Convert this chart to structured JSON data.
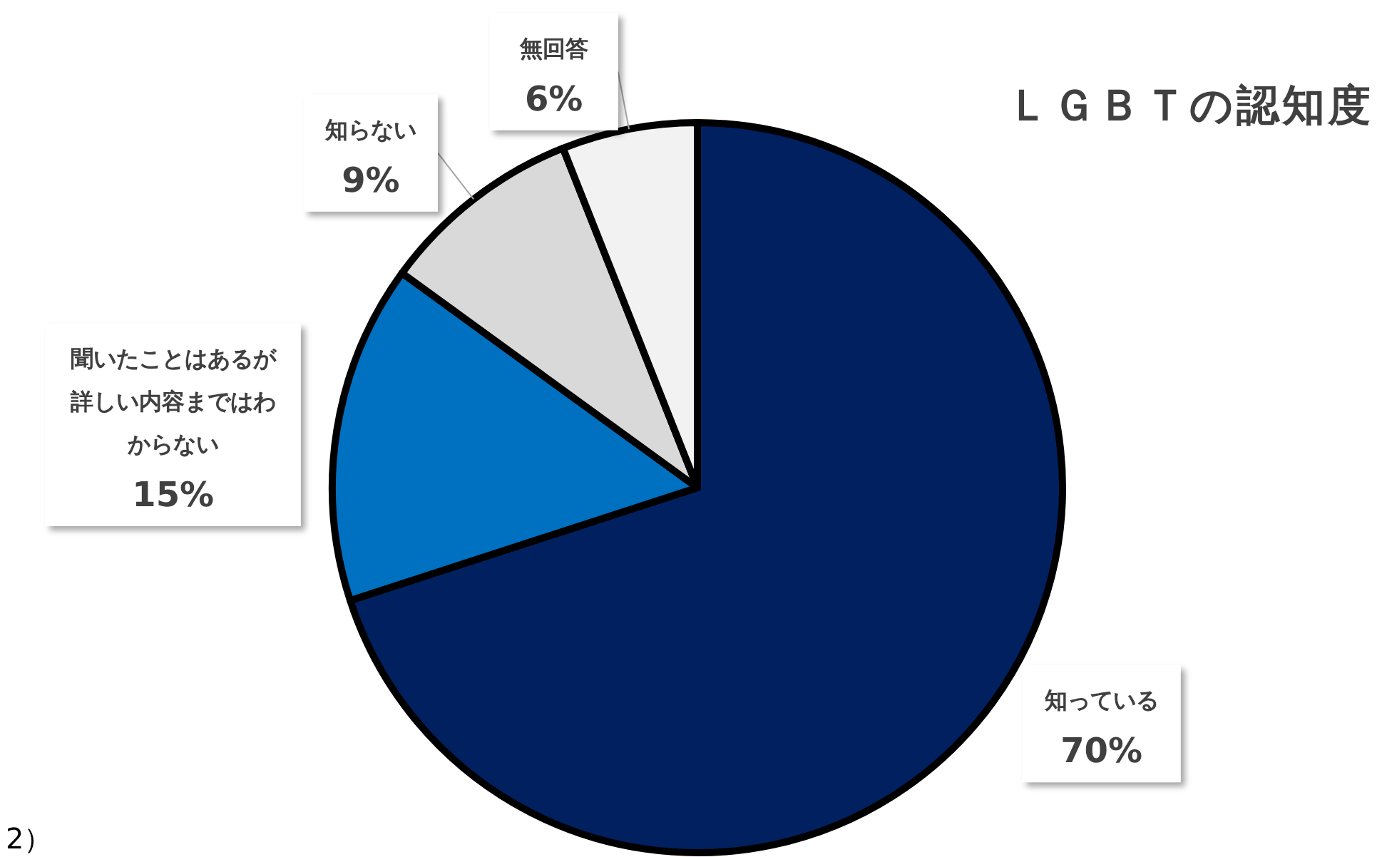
{
  "chart_data": {
    "type": "pie",
    "title": "ＬＧＢＴの認知度",
    "categories": [
      "知っている",
      "聞いたことはあるが詳しい内容まではわからない",
      "知らない",
      "無回答"
    ],
    "values": [
      70,
      15,
      9,
      6
    ],
    "colors": [
      "#002060",
      "#0070c0",
      "#d9d9d9",
      "#f2f2f2"
    ],
    "value_labels": [
      "70%",
      "15%",
      "9%",
      "6%"
    ],
    "legend": false,
    "annotations": [
      "2）"
    ]
  }
}
